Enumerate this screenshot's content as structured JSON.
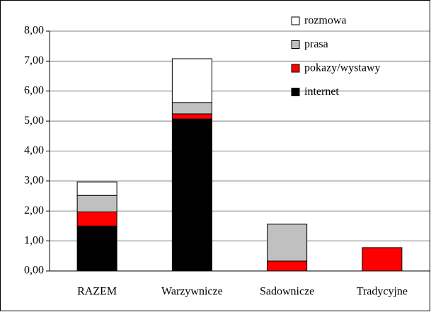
{
  "chart_data": {
    "type": "stacked_bar",
    "categories": [
      "RAZEM",
      "Warzywnicze",
      "Sadownicze",
      "Tradycyjne"
    ],
    "series": [
      {
        "name": "internet",
        "color": "#000000",
        "values": [
          1.5,
          5.07,
          0,
          0
        ]
      },
      {
        "name": "pokazy/wystawy",
        "color": "#ff0000",
        "values": [
          0.47,
          0.17,
          0.33,
          0.78
        ]
      },
      {
        "name": "prasa",
        "color": "#c0c0c0",
        "values": [
          0.55,
          0.38,
          1.23,
          0
        ]
      },
      {
        "name": "rozmowa",
        "color": "#ffffff",
        "values": [
          0.45,
          1.46,
          0,
          0
        ]
      }
    ],
    "ylim": [
      0,
      8
    ],
    "yticks": [
      {
        "value": 0,
        "label": "0,00"
      },
      {
        "value": 1,
        "label": "1,00"
      },
      {
        "value": 2,
        "label": "2,00"
      },
      {
        "value": 3,
        "label": "3,00"
      },
      {
        "value": 4,
        "label": "4,00"
      },
      {
        "value": 5,
        "label": "5,00"
      },
      {
        "value": 6,
        "label": "6,00"
      },
      {
        "value": 7,
        "label": "7,00"
      },
      {
        "value": 8,
        "label": "8,00"
      }
    ],
    "grid": true,
    "legend": "upper right"
  }
}
